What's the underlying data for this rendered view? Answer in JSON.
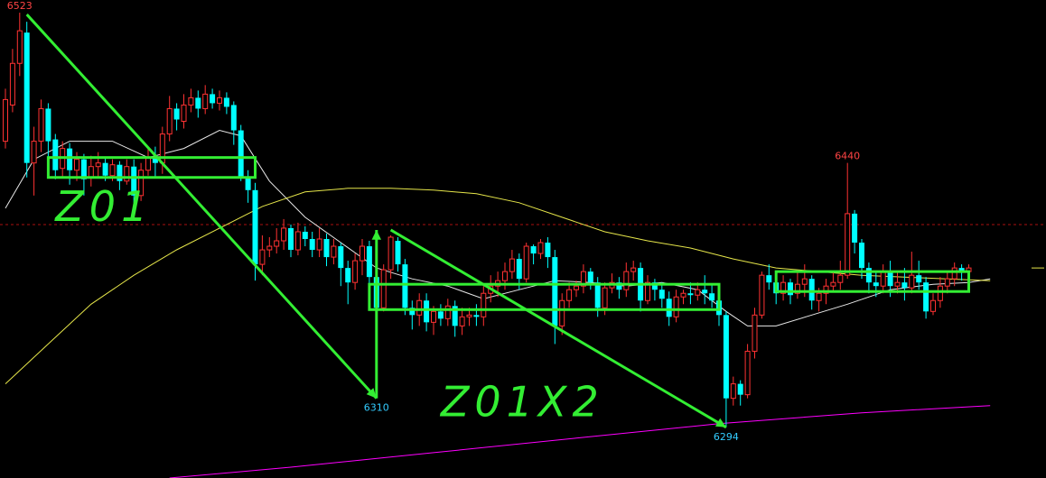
{
  "colors": {
    "background": "#000000",
    "up": "#ff3232",
    "down": "#00ffff",
    "ma_short": "#e8e8e8",
    "ma_mid": "#e6e64a",
    "ma_long": "#ff00ff",
    "annotation": "#33ee33",
    "high_label": "#ff4444",
    "low_label": "#33ccff",
    "reference_line": "#aa1111"
  },
  "chart_data": {
    "type": "candlestick",
    "ylim": [
      6266,
      6530
    ],
    "reference_price": 6406,
    "price_labels": [
      {
        "text": "6523",
        "index": 2,
        "price": 6523,
        "kind": "high"
      },
      {
        "text": "6440",
        "index": 118,
        "price": 6440,
        "kind": "high"
      },
      {
        "text": "6310",
        "index": 52,
        "price": 6310,
        "kind": "low"
      },
      {
        "text": "6294",
        "index": 101,
        "price": 6294,
        "kind": "low"
      }
    ],
    "annotations": [
      {
        "text": "Z01",
        "index": 7,
        "price": 6408
      },
      {
        "text": "Z01X2",
        "index": 61,
        "price": 6300
      }
    ],
    "candles": [
      [
        6452,
        6475,
        6448,
        6481
      ],
      [
        6472,
        6495,
        6468,
        6503
      ],
      [
        6495,
        6513,
        6488,
        6523
      ],
      [
        6512,
        6440,
        6432,
        6518
      ],
      [
        6440,
        6452,
        6422,
        6460
      ],
      [
        6452,
        6470,
        6446,
        6475
      ],
      [
        6470,
        6452,
        6440,
        6473
      ],
      [
        6453,
        6436,
        6431,
        6456
      ],
      [
        6437,
        6448,
        6432,
        6452
      ],
      [
        6448,
        6436,
        6428,
        6451
      ],
      [
        6436,
        6442,
        6430,
        6446
      ],
      [
        6442,
        6431,
        6422,
        6445
      ],
      [
        6432,
        6438,
        6427,
        6444
      ],
      [
        6438,
        6440,
        6432,
        6446
      ],
      [
        6440,
        6433,
        6430,
        6443
      ],
      [
        6433,
        6439,
        6430,
        6442
      ],
      [
        6439,
        6430,
        6425,
        6441
      ],
      [
        6430,
        6438,
        6428,
        6442
      ],
      [
        6438,
        6422,
        6418,
        6442
      ],
      [
        6422,
        6436,
        6419,
        6440
      ],
      [
        6436,
        6443,
        6433,
        6448
      ],
      [
        6443,
        6440,
        6432,
        6449
      ],
      [
        6440,
        6456,
        6434,
        6460
      ],
      [
        6456,
        6470,
        6452,
        6477
      ],
      [
        6470,
        6464,
        6458,
        6473
      ],
      [
        6463,
        6472,
        6459,
        6478
      ],
      [
        6472,
        6476,
        6468,
        6481
      ],
      [
        6476,
        6470,
        6465,
        6480
      ],
      [
        6470,
        6478,
        6467,
        6483
      ],
      [
        6478,
        6473,
        6470,
        6481
      ],
      [
        6473,
        6476,
        6469,
        6480
      ],
      [
        6476,
        6471,
        6467,
        6479
      ],
      [
        6472,
        6458,
        6450,
        6474
      ],
      [
        6458,
        6432,
        6430,
        6461
      ],
      [
        6432,
        6425,
        6418,
        6436
      ],
      [
        6425,
        6384,
        6375,
        6429
      ],
      [
        6384,
        6392,
        6378,
        6400
      ],
      [
        6392,
        6394,
        6388,
        6399
      ],
      [
        6394,
        6397,
        6390,
        6404
      ],
      [
        6397,
        6404,
        6392,
        6409
      ],
      [
        6404,
        6392,
        6388,
        6406
      ],
      [
        6392,
        6402,
        6389,
        6407
      ],
      [
        6402,
        6398,
        6394,
        6405
      ],
      [
        6398,
        6392,
        6388,
        6402
      ],
      [
        6392,
        6398,
        6388,
        6404
      ],
      [
        6398,
        6388,
        6383,
        6401
      ],
      [
        6388,
        6394,
        6384,
        6398
      ],
      [
        6394,
        6382,
        6372,
        6396
      ],
      [
        6382,
        6374,
        6362,
        6386
      ],
      [
        6374,
        6386,
        6370,
        6390
      ],
      [
        6386,
        6394,
        6378,
        6398
      ],
      [
        6394,
        6377,
        6372,
        6397
      ],
      [
        6377,
        6360,
        6310,
        6381
      ],
      [
        6360,
        6381,
        6358,
        6384
      ],
      [
        6381,
        6399,
        6376,
        6400
      ],
      [
        6397,
        6384,
        6380,
        6399
      ],
      [
        6384,
        6360,
        6356,
        6387
      ],
      [
        6360,
        6356,
        6348,
        6364
      ],
      [
        6356,
        6364,
        6350,
        6368
      ],
      [
        6364,
        6352,
        6347,
        6368
      ],
      [
        6352,
        6358,
        6345,
        6361
      ],
      [
        6358,
        6354,
        6350,
        6362
      ],
      [
        6354,
        6361,
        6350,
        6365
      ],
      [
        6361,
        6350,
        6344,
        6364
      ],
      [
        6350,
        6355,
        6345,
        6360
      ],
      [
        6355,
        6356,
        6350,
        6360
      ],
      [
        6356,
        6355,
        6350,
        6362
      ],
      [
        6355,
        6368,
        6350,
        6372
      ],
      [
        6368,
        6372,
        6363,
        6378
      ],
      [
        6372,
        6375,
        6366,
        6380
      ],
      [
        6375,
        6380,
        6370,
        6385
      ],
      [
        6380,
        6387,
        6376,
        6392
      ],
      [
        6387,
        6376,
        6370,
        6390
      ],
      [
        6376,
        6394,
        6374,
        6396
      ],
      [
        6394,
        6390,
        6384,
        6395
      ],
      [
        6390,
        6396,
        6387,
        6398
      ],
      [
        6396,
        6388,
        6382,
        6399
      ],
      [
        6388,
        6350,
        6340,
        6392
      ],
      [
        6350,
        6364,
        6345,
        6368
      ],
      [
        6364,
        6370,
        6360,
        6374
      ],
      [
        6370,
        6372,
        6366,
        6375
      ],
      [
        6372,
        6380,
        6368,
        6384
      ],
      [
        6380,
        6374,
        6370,
        6382
      ],
      [
        6374,
        6360,
        6355,
        6377
      ],
      [
        6360,
        6371,
        6356,
        6374
      ],
      [
        6371,
        6374,
        6368,
        6379
      ],
      [
        6374,
        6370,
        6365,
        6377
      ],
      [
        6370,
        6380,
        6366,
        6385
      ],
      [
        6380,
        6382,
        6375,
        6386
      ],
      [
        6382,
        6364,
        6358,
        6385
      ],
      [
        6364,
        6374,
        6362,
        6378
      ],
      [
        6374,
        6370,
        6364,
        6376
      ],
      [
        6370,
        6365,
        6360,
        6374
      ],
      [
        6365,
        6355,
        6350,
        6369
      ],
      [
        6355,
        6366,
        6352,
        6370
      ],
      [
        6366,
        6368,
        6362,
        6370
      ],
      [
        6368,
        6367,
        6362,
        6374
      ],
      [
        6367,
        6370,
        6364,
        6374
      ],
      [
        6370,
        6368,
        6362,
        6378
      ],
      [
        6368,
        6364,
        6360,
        6373
      ],
      [
        6364,
        6356,
        6350,
        6370
      ],
      [
        6356,
        6310,
        6294,
        6358
      ],
      [
        6310,
        6318,
        6306,
        6322
      ],
      [
        6318,
        6312,
        6306,
        6320
      ],
      [
        6312,
        6336,
        6310,
        6340
      ],
      [
        6336,
        6356,
        6332,
        6360
      ],
      [
        6356,
        6378,
        6354,
        6380
      ],
      [
        6378,
        6374,
        6370,
        6384
      ],
      [
        6374,
        6368,
        6362,
        6377
      ],
      [
        6368,
        6374,
        6364,
        6378
      ],
      [
        6374,
        6367,
        6362,
        6376
      ],
      [
        6368,
        6373,
        6365,
        6380
      ],
      [
        6373,
        6376,
        6366,
        6384
      ],
      [
        6376,
        6364,
        6359,
        6378
      ],
      [
        6364,
        6368,
        6358,
        6371
      ],
      [
        6368,
        6372,
        6362,
        6376
      ],
      [
        6372,
        6374,
        6369,
        6380
      ],
      [
        6374,
        6378,
        6370,
        6386
      ],
      [
        6378,
        6412,
        6376,
        6440
      ],
      [
        6412,
        6396,
        6390,
        6414
      ],
      [
        6396,
        6382,
        6376,
        6398
      ],
      [
        6382,
        6374,
        6368,
        6385
      ],
      [
        6374,
        6372,
        6366,
        6380
      ],
      [
        6372,
        6380,
        6368,
        6384
      ],
      [
        6380,
        6372,
        6366,
        6386
      ],
      [
        6372,
        6374,
        6368,
        6380
      ],
      [
        6374,
        6371,
        6364,
        6382
      ],
      [
        6371,
        6378,
        6368,
        6391
      ],
      [
        6378,
        6374,
        6370,
        6386
      ],
      [
        6374,
        6358,
        6354,
        6377
      ],
      [
        6358,
        6364,
        6356,
        6368
      ],
      [
        6364,
        6372,
        6360,
        6377
      ],
      [
        6372,
        6376,
        6368,
        6380
      ],
      [
        6376,
        6382,
        6372,
        6385
      ],
      [
        6382,
        6380,
        6375,
        6384
      ],
      [
        6380,
        6382,
        6376,
        6384
      ]
    ],
    "moving_averages": [
      {
        "name": "MA short",
        "color": "#e8e8e8",
        "points": [
          [
            0,
            6415
          ],
          [
            4,
            6442
          ],
          [
            9,
            6452
          ],
          [
            15,
            6452
          ],
          [
            20,
            6443
          ],
          [
            25,
            6448
          ],
          [
            30,
            6458
          ],
          [
            33,
            6455
          ],
          [
            37,
            6430
          ],
          [
            42,
            6410
          ],
          [
            47,
            6396
          ],
          [
            52,
            6382
          ],
          [
            57,
            6376
          ],
          [
            62,
            6372
          ],
          [
            67,
            6365
          ],
          [
            72,
            6370
          ],
          [
            77,
            6375
          ],
          [
            82,
            6374
          ],
          [
            87,
            6372
          ],
          [
            92,
            6374
          ],
          [
            97,
            6370
          ],
          [
            101,
            6358
          ],
          [
            104,
            6350
          ],
          [
            108,
            6350
          ],
          [
            113,
            6356
          ],
          [
            118,
            6362
          ],
          [
            124,
            6370
          ],
          [
            130,
            6373
          ],
          [
            135,
            6374
          ],
          [
            138,
            6376
          ]
        ]
      },
      {
        "name": "MA mid",
        "color": "#e6e64a",
        "points": [
          [
            0,
            6318
          ],
          [
            6,
            6340
          ],
          [
            12,
            6362
          ],
          [
            18,
            6378
          ],
          [
            24,
            6392
          ],
          [
            30,
            6404
          ],
          [
            36,
            6416
          ],
          [
            42,
            6424
          ],
          [
            48,
            6426
          ],
          [
            54,
            6426
          ],
          [
            60,
            6425
          ],
          [
            66,
            6423
          ],
          [
            72,
            6418
          ],
          [
            78,
            6410
          ],
          [
            84,
            6402
          ],
          [
            90,
            6397
          ],
          [
            96,
            6393
          ],
          [
            102,
            6387
          ],
          [
            108,
            6382
          ],
          [
            114,
            6380
          ],
          [
            120,
            6378
          ],
          [
            126,
            6377
          ],
          [
            132,
            6376
          ],
          [
            138,
            6375
          ]
        ]
      },
      {
        "name": "MA long",
        "color": "#ff00ff",
        "points": [
          [
            23,
            6266
          ],
          [
            40,
            6272
          ],
          [
            60,
            6280
          ],
          [
            80,
            6288
          ],
          [
            100,
            6296
          ],
          [
            120,
            6302
          ],
          [
            138,
            6306
          ]
        ]
      }
    ],
    "consolidation_boxes": [
      {
        "from_index": 6,
        "to_index": 35,
        "low": 6432,
        "high": 6443
      },
      {
        "from_index": 51,
        "to_index": 100,
        "low": 6359,
        "high": 6373
      },
      {
        "from_index": 108,
        "to_index": 135,
        "low": 6369,
        "high": 6380
      }
    ],
    "trend_arrows": [
      {
        "from": [
          3,
          6522
        ],
        "to": [
          52,
          6310
        ]
      },
      {
        "from": [
          52,
          6310
        ],
        "to": [
          52,
          6403
        ]
      },
      {
        "from": [
          54,
          6403
        ],
        "to": [
          101,
          6294
        ]
      }
    ]
  }
}
